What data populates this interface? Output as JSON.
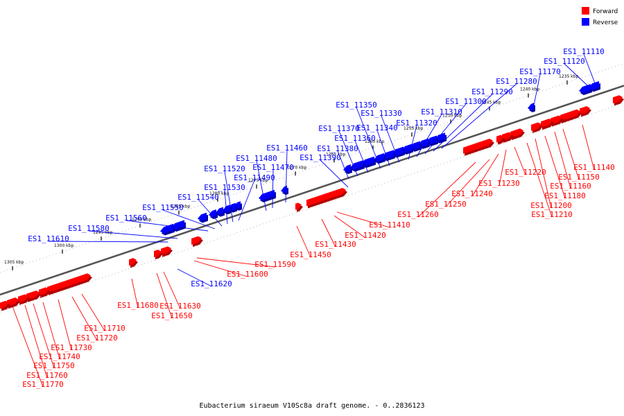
{
  "caption": "Eubacterium siraeum V10Sc8a draft genome. - 0..2836123",
  "legend": [
    {
      "label": "Forward",
      "color": "#ff0000"
    },
    {
      "label": "Reverse",
      "color": "#0000ff"
    }
  ],
  "colors": {
    "forward": "#ff0000",
    "reverse": "#0000ff",
    "backbone": "#555555"
  },
  "ticks": [
    "1235 kbp",
    "1240 kbp",
    "1245 kbp",
    "1250 kbp",
    "1255 kbp",
    "1260 kbp",
    "1265 kbp",
    "1270 kbp",
    "1275 kbp",
    "1280 kbp",
    "1285 kbp",
    "1290 kbp",
    "1295 kbp",
    "1300 kbp",
    "1305 kbp"
  ],
  "reverse_genes": [
    {
      "id": "ES1_11110"
    },
    {
      "id": "ES1_11120"
    },
    {
      "id": "ES1_11170"
    },
    {
      "id": "ES1_11280"
    },
    {
      "id": "ES1_11290"
    },
    {
      "id": "ES1_11300"
    },
    {
      "id": "ES1_11310"
    },
    {
      "id": "ES1_11320"
    },
    {
      "id": "ES1_11330"
    },
    {
      "id": "ES1_11340"
    },
    {
      "id": "ES1_11350"
    },
    {
      "id": "ES1_11360"
    },
    {
      "id": "ES1_11370"
    },
    {
      "id": "ES1_11380"
    },
    {
      "id": "ES1_11390"
    },
    {
      "id": "ES1_11460"
    },
    {
      "id": "ES1_11470"
    },
    {
      "id": "ES1_11480"
    },
    {
      "id": "ES1_11490"
    },
    {
      "id": "ES1_11520"
    },
    {
      "id": "ES1_11530"
    },
    {
      "id": "ES1_11540"
    },
    {
      "id": "ES1_11550"
    },
    {
      "id": "ES1_11560"
    },
    {
      "id": "ES1_11580"
    },
    {
      "id": "ES1_11610"
    },
    {
      "id": "ES1_11620"
    }
  ],
  "forward_genes": [
    {
      "id": "ES1_11140"
    },
    {
      "id": "ES1_11150"
    },
    {
      "id": "ES1_11160"
    },
    {
      "id": "ES1_11180"
    },
    {
      "id": "ES1_11200"
    },
    {
      "id": "ES1_11210"
    },
    {
      "id": "ES1_11220"
    },
    {
      "id": "ES1_11230"
    },
    {
      "id": "ES1_11240"
    },
    {
      "id": "ES1_11250"
    },
    {
      "id": "ES1_11260"
    },
    {
      "id": "ES1_11410"
    },
    {
      "id": "ES1_11420"
    },
    {
      "id": "ES1_11430"
    },
    {
      "id": "ES1_11450"
    },
    {
      "id": "ES1_11590"
    },
    {
      "id": "ES1_11600"
    },
    {
      "id": "ES1_11630"
    },
    {
      "id": "ES1_11650"
    },
    {
      "id": "ES1_11680"
    },
    {
      "id": "ES1_11710"
    },
    {
      "id": "ES1_11720"
    },
    {
      "id": "ES1_11730"
    },
    {
      "id": "ES1_11740"
    },
    {
      "id": "ES1_11750"
    },
    {
      "id": "ES1_11760"
    },
    {
      "id": "ES1_11770"
    }
  ]
}
